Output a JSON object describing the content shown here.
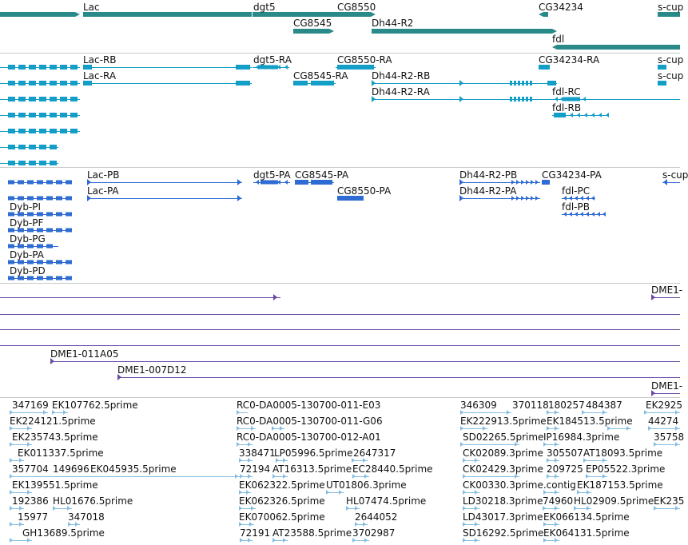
{
  "colors": {
    "gene": "#2a8a8a",
    "transcript": "#139ec8",
    "cds": "#2e6bd2",
    "clone": "#6a4aa8",
    "est": "#86bde2",
    "separator": "#c8c8c8"
  },
  "tracks": {
    "genes": {
      "labels": [
        "Lac",
        "dgt5",
        "CG8550",
        "CG8545",
        "Dh44-R2",
        "CG34234",
        "s-cup",
        "fdl"
      ]
    },
    "transcripts": {
      "labels": [
        "Lac-RB",
        "dgt5-RA",
        "CG8550-RA",
        "CG34234-RA",
        "s-cup",
        "Lac-RA",
        "CG8545-RA",
        "Dh44-R2-RB",
        "s-cup",
        "Dh44-R2-RA",
        "fdl-RC",
        "fdl-RB"
      ]
    },
    "proteins": {
      "labels": [
        "Lac-PB",
        "dgt5-PA",
        "CG8545-PA",
        "Dh44-R2-PB",
        "CG34234-PA",
        "s-cup",
        "Lac-PA",
        "CG8550-PA",
        "Dh44-R2-PA",
        "fdl-PC",
        "fdl-PB",
        "Dyb-PI",
        "Dyb-PF",
        "Dyb-PG",
        "Dyb-PA",
        "Dyb-PD"
      ]
    },
    "clones": {
      "labels": [
        "DME1-",
        "DME1-011A05",
        "DME1-007D12",
        "DME1-"
      ]
    },
    "ests": {
      "labels": [
        "347169",
        "EK107762.5prime",
        "RC0-DA0005-130700-011-E03",
        "346309",
        "370118",
        "180257",
        "484387",
        "EK2925",
        "EK224121.5prime",
        "RC0-DA0005-130700-011-G06",
        "EK222913.5prime",
        "EK184513.5prime",
        "44274",
        "EK235743.5prime",
        "RC0-DA0005-130700-012-A01",
        "SD02265.5prime",
        "IP16984.3prime",
        "35758",
        "EK011337.5prime",
        "338471",
        "LP05996.5prime",
        "2647317",
        "CK02089.3prime",
        "305507",
        "AT18093.5prime",
        "357704",
        "149696",
        "EK045935.5prime",
        "72194",
        "AT16313.5prime",
        "EC28440.5prime",
        "CK02429.3prime",
        "209725",
        "EP05522.3prime",
        "EK139551.5prime",
        "EK062322.5prime",
        "UT01806.3prime",
        "CK00330.3prime.contig",
        "EK187153.5prime",
        "192386",
        "HL01676.5prime",
        "EK062326.5prime",
        "HL07474.5prime",
        "LD30218.3prime",
        "74960",
        "HL02909.5prime",
        "EK235",
        "15977",
        "347018",
        "EK070062.5prime",
        "2644052",
        "LD43017.3prime",
        "EK066134.5prime",
        "GH13689.5prime",
        "72191",
        "AT23588.5prime",
        "3702987",
        "SD16292.5prime",
        "EK064131.5prime"
      ]
    }
  }
}
